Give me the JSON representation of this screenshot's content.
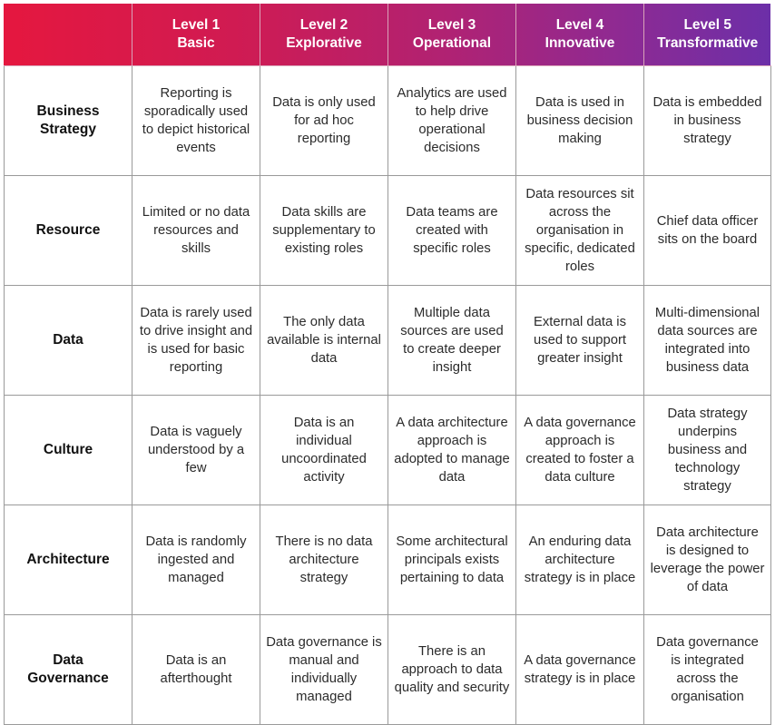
{
  "table": {
    "headers": [
      {
        "level": "Level 1",
        "name": "Basic"
      },
      {
        "level": "Level 2",
        "name": "Explorative"
      },
      {
        "level": "Level 3",
        "name": "Operational"
      },
      {
        "level": "Level 4",
        "name": "Innovative"
      },
      {
        "level": "Level 5",
        "name": "Transformative"
      }
    ],
    "rows": [
      {
        "label": [
          "Business",
          "Strategy"
        ],
        "cells": [
          "Reporting is sporadically used to depict historical events",
          "Data is only used for ad hoc reporting",
          "Analytics are used to help drive operational decisions",
          "Data is used in business decision making",
          "Data is embedded in business strategy"
        ]
      },
      {
        "label": [
          "Resource"
        ],
        "cells": [
          "Limited or no data resources and skills",
          "Data skills are supplementary to existing roles",
          "Data teams are created with specific roles",
          "Data resources sit across the organisation in specific, dedicated roles",
          "Chief data officer sits on the board"
        ]
      },
      {
        "label": [
          "Data"
        ],
        "cells": [
          "Data is rarely used to drive insight and is used for basic reporting",
          "The only data available is internal data",
          "Multiple data sources are used to create deeper insight",
          "External data is used to support greater insight",
          "Multi-dimensional data sources are integrated into business data"
        ]
      },
      {
        "label": [
          "Culture"
        ],
        "cells": [
          "Data is vaguely understood by a few",
          "Data is an individual uncoordinated activity",
          "A data architecture approach is adopted to manage data",
          "A data governance approach is created to foster a data culture",
          "Data strategy underpins business and technology strategy"
        ]
      },
      {
        "label": [
          "Architecture"
        ],
        "cells": [
          "Data is randomly ingested and managed",
          "There is no data architecture strategy",
          "Some architectural principals exists pertaining to data",
          "An enduring data architecture strategy is in place",
          "Data architecture is designed to leverage the power of data"
        ]
      },
      {
        "label": [
          "Data",
          "Governance"
        ],
        "cells": [
          "Data is an afterthought",
          "Data governance is manual and individually managed",
          "There is an approach to data quality and security",
          "A data governance strategy is in place",
          "Data governance is integrated across the organisation"
        ]
      }
    ]
  },
  "colors": {
    "header_gradient_start": "#e5173f",
    "header_gradient_end": "#6c2fa8",
    "header_text": "#ffffff",
    "border": "#9a9a9a"
  }
}
